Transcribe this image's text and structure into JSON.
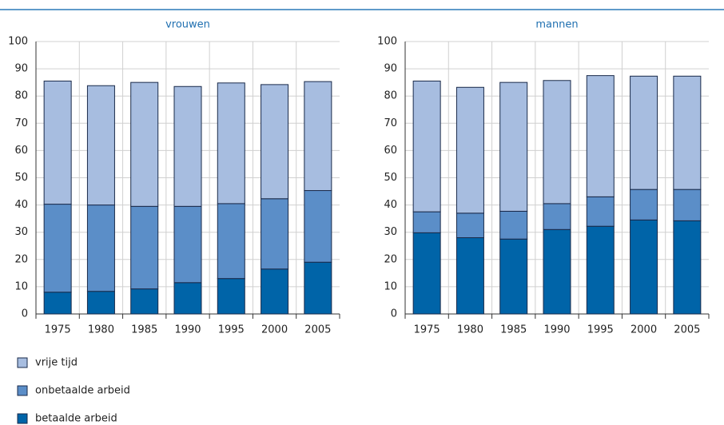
{
  "chart_data": [
    {
      "type": "bar",
      "stacked": true,
      "title": "vrouwen",
      "categories": [
        "1975",
        "1980",
        "1985",
        "1990",
        "1995",
        "2000",
        "2005"
      ],
      "series": [
        {
          "name": "betaalde arbeid",
          "color": "#0064a8",
          "values": [
            8.0,
            8.3,
            9.2,
            11.5,
            13.0,
            16.5,
            19.0
          ]
        },
        {
          "name": "onbetaalde arbeid",
          "color": "#5b8ec8",
          "values": [
            32.3,
            31.7,
            30.3,
            28.0,
            27.5,
            25.8,
            26.3
          ]
        },
        {
          "name": "vrije tijd",
          "color": "#a7bde0",
          "values": [
            45.2,
            43.8,
            45.5,
            44.0,
            44.3,
            41.9,
            40.0
          ]
        }
      ],
      "ylim": [
        0,
        100
      ],
      "yticks": [
        0,
        10,
        20,
        30,
        40,
        50,
        60,
        70,
        80,
        90,
        100
      ],
      "grid": true
    },
    {
      "type": "bar",
      "stacked": true,
      "title": "mannen",
      "categories": [
        "1975",
        "1980",
        "1985",
        "1990",
        "1995",
        "2000",
        "2005"
      ],
      "series": [
        {
          "color": "#0064a8",
          "values": [
            29.8,
            28.0,
            27.5,
            31.0,
            32.2,
            34.5,
            34.2
          ]
        },
        {
          "color": "#5b8ec8",
          "values": [
            7.7,
            9.0,
            10.2,
            9.5,
            10.8,
            11.2,
            11.5
          ]
        },
        {
          "color": "#a7bde0",
          "values": [
            48.0,
            46.2,
            47.3,
            45.2,
            44.5,
            41.6,
            41.6
          ]
        }
      ],
      "ylim": [
        0,
        100
      ],
      "yticks": [
        0,
        10,
        20,
        30,
        40,
        50,
        60,
        70,
        80,
        90,
        100
      ],
      "grid": true
    }
  ]
}
